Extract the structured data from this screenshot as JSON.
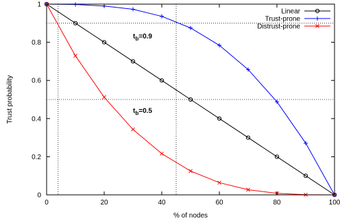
{
  "chart_data": {
    "type": "line",
    "xlabel": "% of nodes",
    "ylabel": "Trust probability",
    "xlim": [
      0,
      100
    ],
    "ylim": [
      0,
      1
    ],
    "x_ticks": [
      0,
      20,
      40,
      60,
      80,
      100
    ],
    "y_ticks": [
      0,
      0.2,
      0.4,
      0.6,
      0.8,
      1
    ],
    "x_tick_labels": [
      "0",
      "20",
      "40",
      "60",
      "80",
      "100"
    ],
    "y_tick_labels": [
      "0",
      "0.2",
      "0.4",
      "0.6",
      "0.8",
      "1"
    ],
    "grid": false,
    "legend_position": "top-right",
    "x": [
      0,
      10,
      20,
      30,
      40,
      50,
      60,
      70,
      80,
      90,
      100
    ],
    "series": [
      {
        "name": "Linear",
        "color": "#000000",
        "marker": "circle",
        "values": [
          1.0,
          0.9,
          0.8,
          0.7,
          0.6,
          0.5,
          0.4,
          0.3,
          0.2,
          0.1,
          0.0
        ]
      },
      {
        "name": "Trust-prone",
        "color": "#0000ff",
        "marker": "plus",
        "values": [
          1.0,
          0.998,
          0.99,
          0.973,
          0.936,
          0.875,
          0.784,
          0.657,
          0.488,
          0.271,
          0.0
        ]
      },
      {
        "name": "Distrust-prone",
        "color": "#ff0000",
        "marker": "cross",
        "values": [
          1.0,
          0.729,
          0.512,
          0.343,
          0.216,
          0.125,
          0.064,
          0.027,
          0.008,
          0.001,
          0.0
        ]
      }
    ],
    "reference_lines": {
      "horizontal": [
        0.9,
        0.5
      ],
      "vertical": [
        4,
        45
      ]
    },
    "annotations": [
      {
        "main": "t",
        "sub": "b",
        "value": "=0.9",
        "x": 30,
        "y": 0.82
      },
      {
        "main": "t",
        "sub": "b",
        "value": "=0.5",
        "x": 30,
        "y": 0.43
      }
    ]
  }
}
